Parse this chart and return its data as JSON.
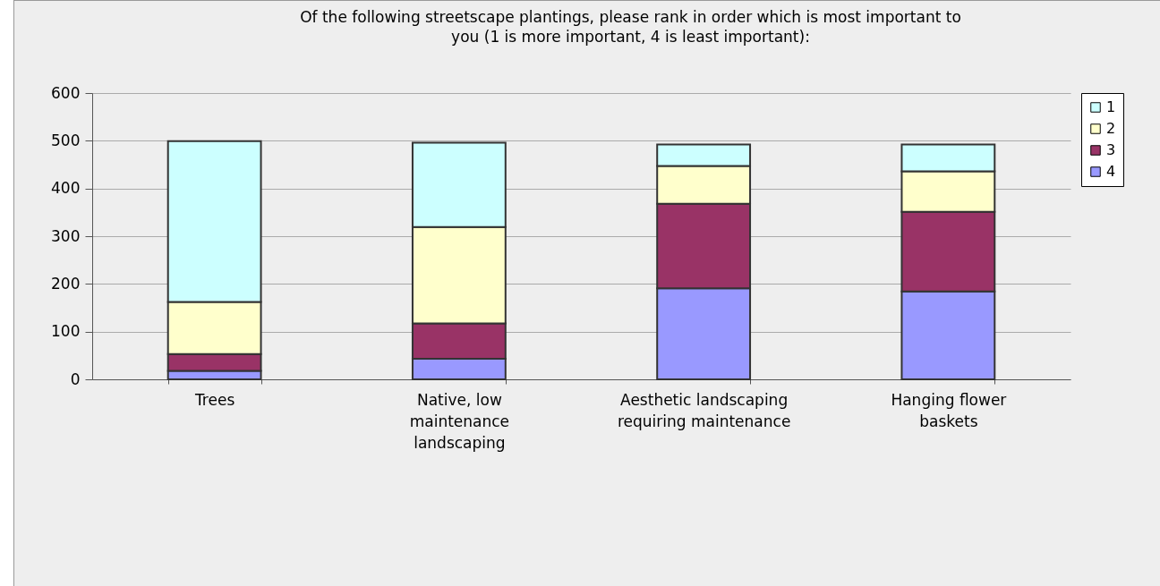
{
  "chart_data": {
    "type": "bar",
    "title": "Of the following streetscape plantings, please rank in order which is most important to you (1 is more important, 4 is least important):",
    "categories": [
      "Trees",
      "Native, low maintenance landscaping",
      "Aesthetic landscaping requiring maintenance",
      "Hanging flower baskets"
    ],
    "stacked": true,
    "series": [
      {
        "name": "4",
        "color": "#9999ff",
        "values": [
          18,
          43,
          191,
          184
        ]
      },
      {
        "name": "3",
        "color": "#993366",
        "values": [
          35,
          74,
          177,
          167
        ]
      },
      {
        "name": "2",
        "color": "#ffffcc",
        "values": [
          109,
          202,
          79,
          85
        ]
      },
      {
        "name": "1",
        "color": "#ccffff",
        "values": [
          337,
          177,
          45,
          56
        ]
      }
    ],
    "ylim": [
      0,
      600
    ],
    "yticks": [
      0,
      100,
      200,
      300,
      400,
      500,
      600
    ],
    "grid": "y",
    "legend": "right"
  }
}
